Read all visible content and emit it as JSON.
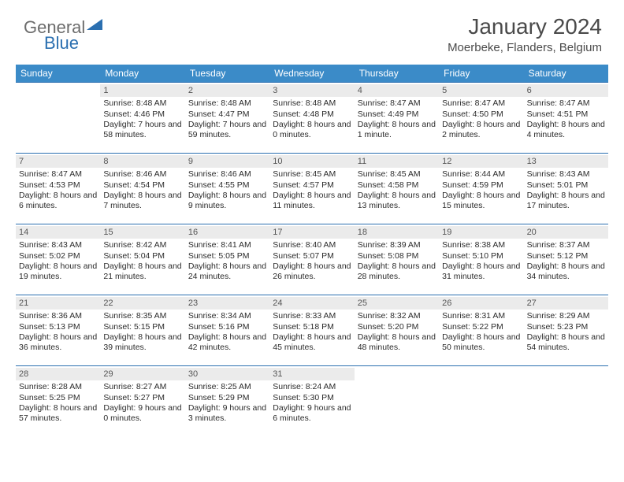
{
  "logo": {
    "part1": "General",
    "part2": "Blue"
  },
  "header": {
    "month": "January 2024",
    "location": "Moerbeke, Flanders, Belgium"
  },
  "colors": {
    "header_bar": "#3b8bc8",
    "row_border": "#2b6fb0",
    "daynum_bg": "#ebebeb",
    "daynum_fg": "#555555",
    "text": "#2b2b2b",
    "logo_gray": "#6c6c6c",
    "logo_blue": "#2b6fb0",
    "title_fg": "#4a4a4a"
  },
  "calendar": {
    "day_headers": [
      "Sunday",
      "Monday",
      "Tuesday",
      "Wednesday",
      "Thursday",
      "Friday",
      "Saturday"
    ],
    "start_offset": 1,
    "days": [
      {
        "n": "1",
        "sunrise": "8:48 AM",
        "sunset": "4:46 PM",
        "daylight": "7 hours and 58 minutes."
      },
      {
        "n": "2",
        "sunrise": "8:48 AM",
        "sunset": "4:47 PM",
        "daylight": "7 hours and 59 minutes."
      },
      {
        "n": "3",
        "sunrise": "8:48 AM",
        "sunset": "4:48 PM",
        "daylight": "8 hours and 0 minutes."
      },
      {
        "n": "4",
        "sunrise": "8:47 AM",
        "sunset": "4:49 PM",
        "daylight": "8 hours and 1 minute."
      },
      {
        "n": "5",
        "sunrise": "8:47 AM",
        "sunset": "4:50 PM",
        "daylight": "8 hours and 2 minutes."
      },
      {
        "n": "6",
        "sunrise": "8:47 AM",
        "sunset": "4:51 PM",
        "daylight": "8 hours and 4 minutes."
      },
      {
        "n": "7",
        "sunrise": "8:47 AM",
        "sunset": "4:53 PM",
        "daylight": "8 hours and 6 minutes."
      },
      {
        "n": "8",
        "sunrise": "8:46 AM",
        "sunset": "4:54 PM",
        "daylight": "8 hours and 7 minutes."
      },
      {
        "n": "9",
        "sunrise": "8:46 AM",
        "sunset": "4:55 PM",
        "daylight": "8 hours and 9 minutes."
      },
      {
        "n": "10",
        "sunrise": "8:45 AM",
        "sunset": "4:57 PM",
        "daylight": "8 hours and 11 minutes."
      },
      {
        "n": "11",
        "sunrise": "8:45 AM",
        "sunset": "4:58 PM",
        "daylight": "8 hours and 13 minutes."
      },
      {
        "n": "12",
        "sunrise": "8:44 AM",
        "sunset": "4:59 PM",
        "daylight": "8 hours and 15 minutes."
      },
      {
        "n": "13",
        "sunrise": "8:43 AM",
        "sunset": "5:01 PM",
        "daylight": "8 hours and 17 minutes."
      },
      {
        "n": "14",
        "sunrise": "8:43 AM",
        "sunset": "5:02 PM",
        "daylight": "8 hours and 19 minutes."
      },
      {
        "n": "15",
        "sunrise": "8:42 AM",
        "sunset": "5:04 PM",
        "daylight": "8 hours and 21 minutes."
      },
      {
        "n": "16",
        "sunrise": "8:41 AM",
        "sunset": "5:05 PM",
        "daylight": "8 hours and 24 minutes."
      },
      {
        "n": "17",
        "sunrise": "8:40 AM",
        "sunset": "5:07 PM",
        "daylight": "8 hours and 26 minutes."
      },
      {
        "n": "18",
        "sunrise": "8:39 AM",
        "sunset": "5:08 PM",
        "daylight": "8 hours and 28 minutes."
      },
      {
        "n": "19",
        "sunrise": "8:38 AM",
        "sunset": "5:10 PM",
        "daylight": "8 hours and 31 minutes."
      },
      {
        "n": "20",
        "sunrise": "8:37 AM",
        "sunset": "5:12 PM",
        "daylight": "8 hours and 34 minutes."
      },
      {
        "n": "21",
        "sunrise": "8:36 AM",
        "sunset": "5:13 PM",
        "daylight": "8 hours and 36 minutes."
      },
      {
        "n": "22",
        "sunrise": "8:35 AM",
        "sunset": "5:15 PM",
        "daylight": "8 hours and 39 minutes."
      },
      {
        "n": "23",
        "sunrise": "8:34 AM",
        "sunset": "5:16 PM",
        "daylight": "8 hours and 42 minutes."
      },
      {
        "n": "24",
        "sunrise": "8:33 AM",
        "sunset": "5:18 PM",
        "daylight": "8 hours and 45 minutes."
      },
      {
        "n": "25",
        "sunrise": "8:32 AM",
        "sunset": "5:20 PM",
        "daylight": "8 hours and 48 minutes."
      },
      {
        "n": "26",
        "sunrise": "8:31 AM",
        "sunset": "5:22 PM",
        "daylight": "8 hours and 50 minutes."
      },
      {
        "n": "27",
        "sunrise": "8:29 AM",
        "sunset": "5:23 PM",
        "daylight": "8 hours and 54 minutes."
      },
      {
        "n": "28",
        "sunrise": "8:28 AM",
        "sunset": "5:25 PM",
        "daylight": "8 hours and 57 minutes."
      },
      {
        "n": "29",
        "sunrise": "8:27 AM",
        "sunset": "5:27 PM",
        "daylight": "9 hours and 0 minutes."
      },
      {
        "n": "30",
        "sunrise": "8:25 AM",
        "sunset": "5:29 PM",
        "daylight": "9 hours and 3 minutes."
      },
      {
        "n": "31",
        "sunrise": "8:24 AM",
        "sunset": "5:30 PM",
        "daylight": "9 hours and 6 minutes."
      }
    ],
    "labels": {
      "sunrise": "Sunrise:",
      "sunset": "Sunset:",
      "daylight": "Daylight:"
    }
  }
}
